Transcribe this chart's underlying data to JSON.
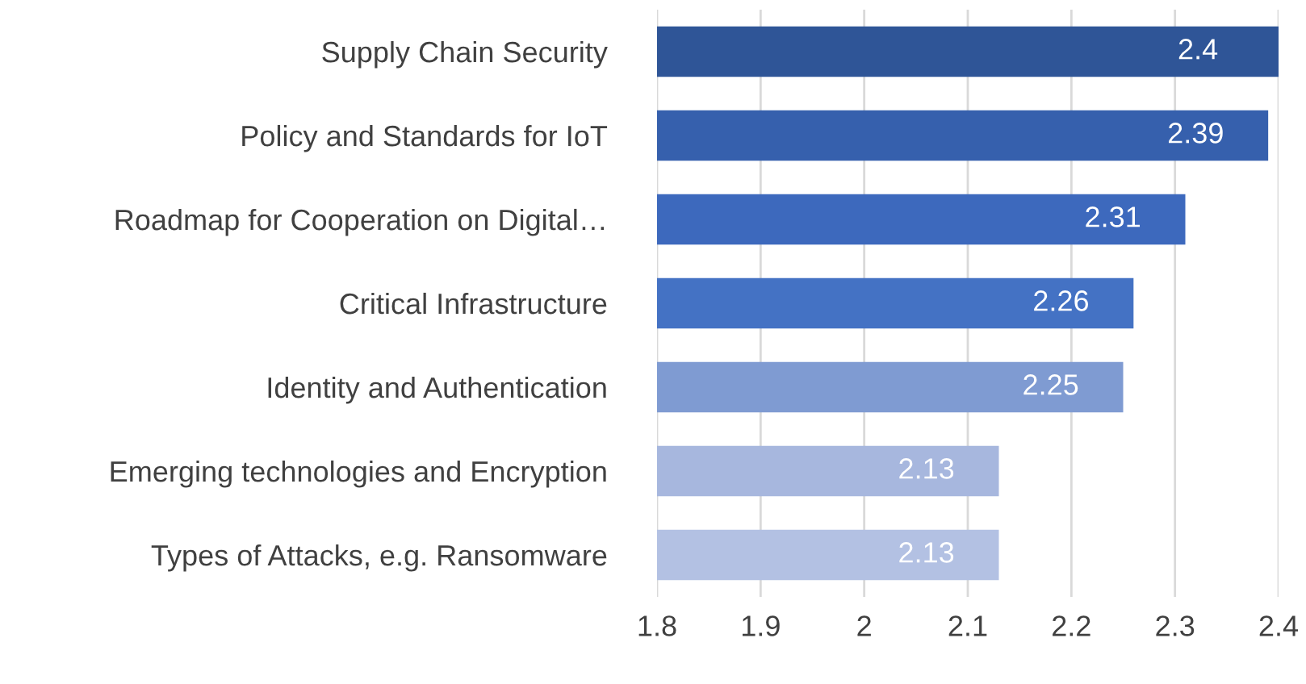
{
  "chart_data": {
    "type": "bar",
    "orientation": "horizontal",
    "categories": [
      "Supply Chain Security",
      "Policy and Standards for IoT",
      "Roadmap for Cooperation on Digital…",
      "Critical Infrastructure",
      "Identity and Authentication",
      "Emerging technologies and Encryption",
      "Types of Attacks, e.g. Ransomware"
    ],
    "values": [
      2.4,
      2.39,
      2.31,
      2.26,
      2.25,
      2.13,
      2.13
    ],
    "colors": [
      "#2f5597",
      "#3660ad",
      "#3d69bd",
      "#4472c4",
      "#7f9bd2",
      "#a7b7de",
      "#b3c1e3"
    ],
    "xlim": [
      1.8,
      2.4
    ],
    "xticks": [
      1.8,
      1.9,
      2,
      2.1,
      2.2,
      2.3,
      2.4
    ],
    "grid": "x",
    "data_labels": true
  }
}
